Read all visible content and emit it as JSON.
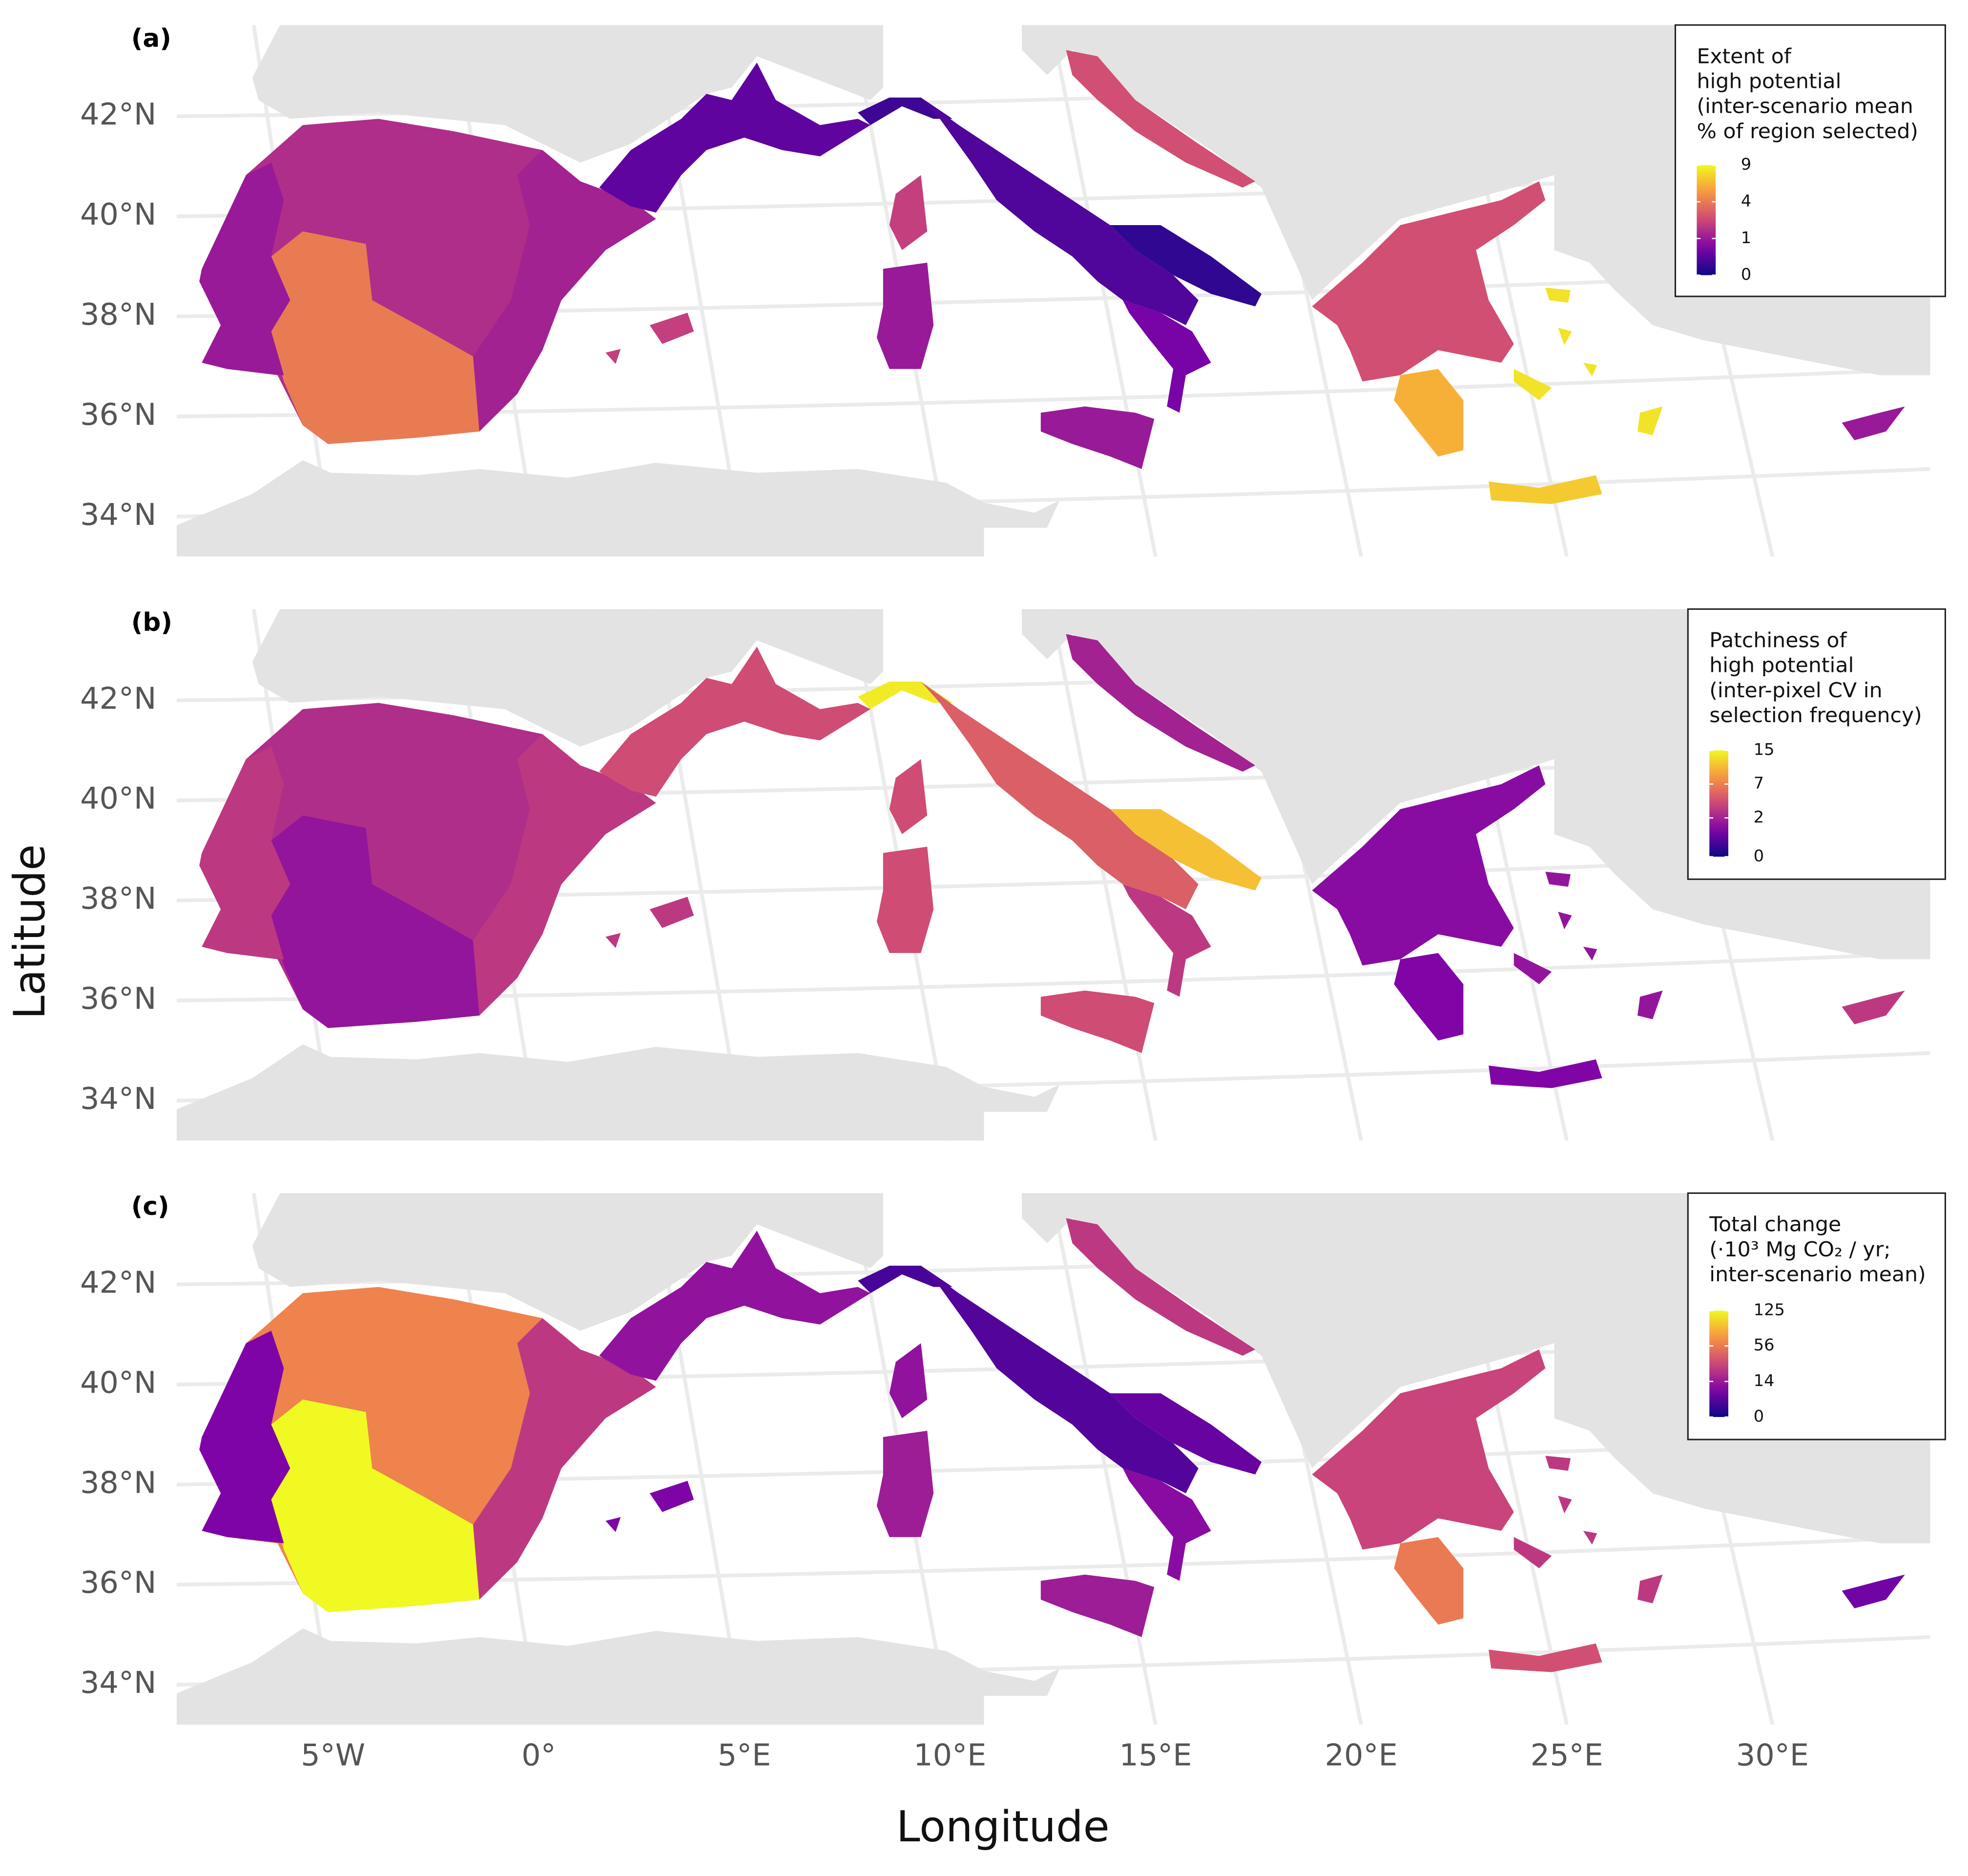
{
  "map": {
    "x_label": "Longitude",
    "y_label": "Latitude",
    "xticks": [
      {
        "value": -5,
        "label": "5°W"
      },
      {
        "value": 0,
        "label": "0°"
      },
      {
        "value": 5,
        "label": "5°E"
      },
      {
        "value": 10,
        "label": "10°E"
      },
      {
        "value": 15,
        "label": "15°E"
      },
      {
        "value": 20,
        "label": "20°E"
      },
      {
        "value": 25,
        "label": "25°E"
      },
      {
        "value": 30,
        "label": "30°E"
      }
    ],
    "yticks": [
      {
        "value": 42,
        "label": "42°N"
      },
      {
        "value": 40,
        "label": "40°N"
      },
      {
        "value": 38,
        "label": "38°N"
      },
      {
        "value": 36,
        "label": "36°N"
      },
      {
        "value": 34,
        "label": "34°N"
      }
    ],
    "panels": [
      {
        "label": "(a)",
        "legend": {
          "title_lines": [
            "Extent of",
            "high potential",
            "(inter-scenario mean",
            "% of region selected)"
          ],
          "lim": [
            0,
            9
          ],
          "scale": "sqrt",
          "ticks": [
            9,
            4,
            1,
            0
          ]
        },
        "values": [
          1.5,
          4,
          1.2,
          1,
          0.3,
          0.1,
          0.2,
          0.05,
          0.5,
          1,
          1,
          2,
          2,
          2.5,
          2.5,
          6,
          7,
          8,
          1
        ]
      },
      {
        "label": "(b)",
        "legend": {
          "title_lines": [
            "Patchiness of",
            "high potential",
            "(inter-pixel CV in",
            "selection frequency)"
          ],
          "lim": [
            0,
            15
          ],
          "scale": "sqrt",
          "ticks": [
            15,
            7,
            2,
            0
          ]
        },
        "values": [
          2.5,
          1.5,
          3,
          3,
          4,
          14,
          5,
          11,
          3,
          4,
          4,
          4,
          3,
          2,
          1.2,
          1,
          1,
          1.5,
          3
        ]
      },
      {
        "label": "(c)",
        "legend": {
          "title_lines": [
            "Total change",
            "(·10³ Mg CO₂ / yr;",
            "inter-scenario mean)"
          ],
          "lim": [
            0,
            125
          ],
          "scale": "sqrt",
          "ticks": [
            125,
            56,
            14,
            0
          ]
        },
        "values": [
          60,
          125,
          25,
          8,
          12,
          2,
          3,
          5,
          10,
          15,
          15,
          12,
          8,
          25,
          30,
          55,
          35,
          25,
          6
        ]
      }
    ]
  }
}
